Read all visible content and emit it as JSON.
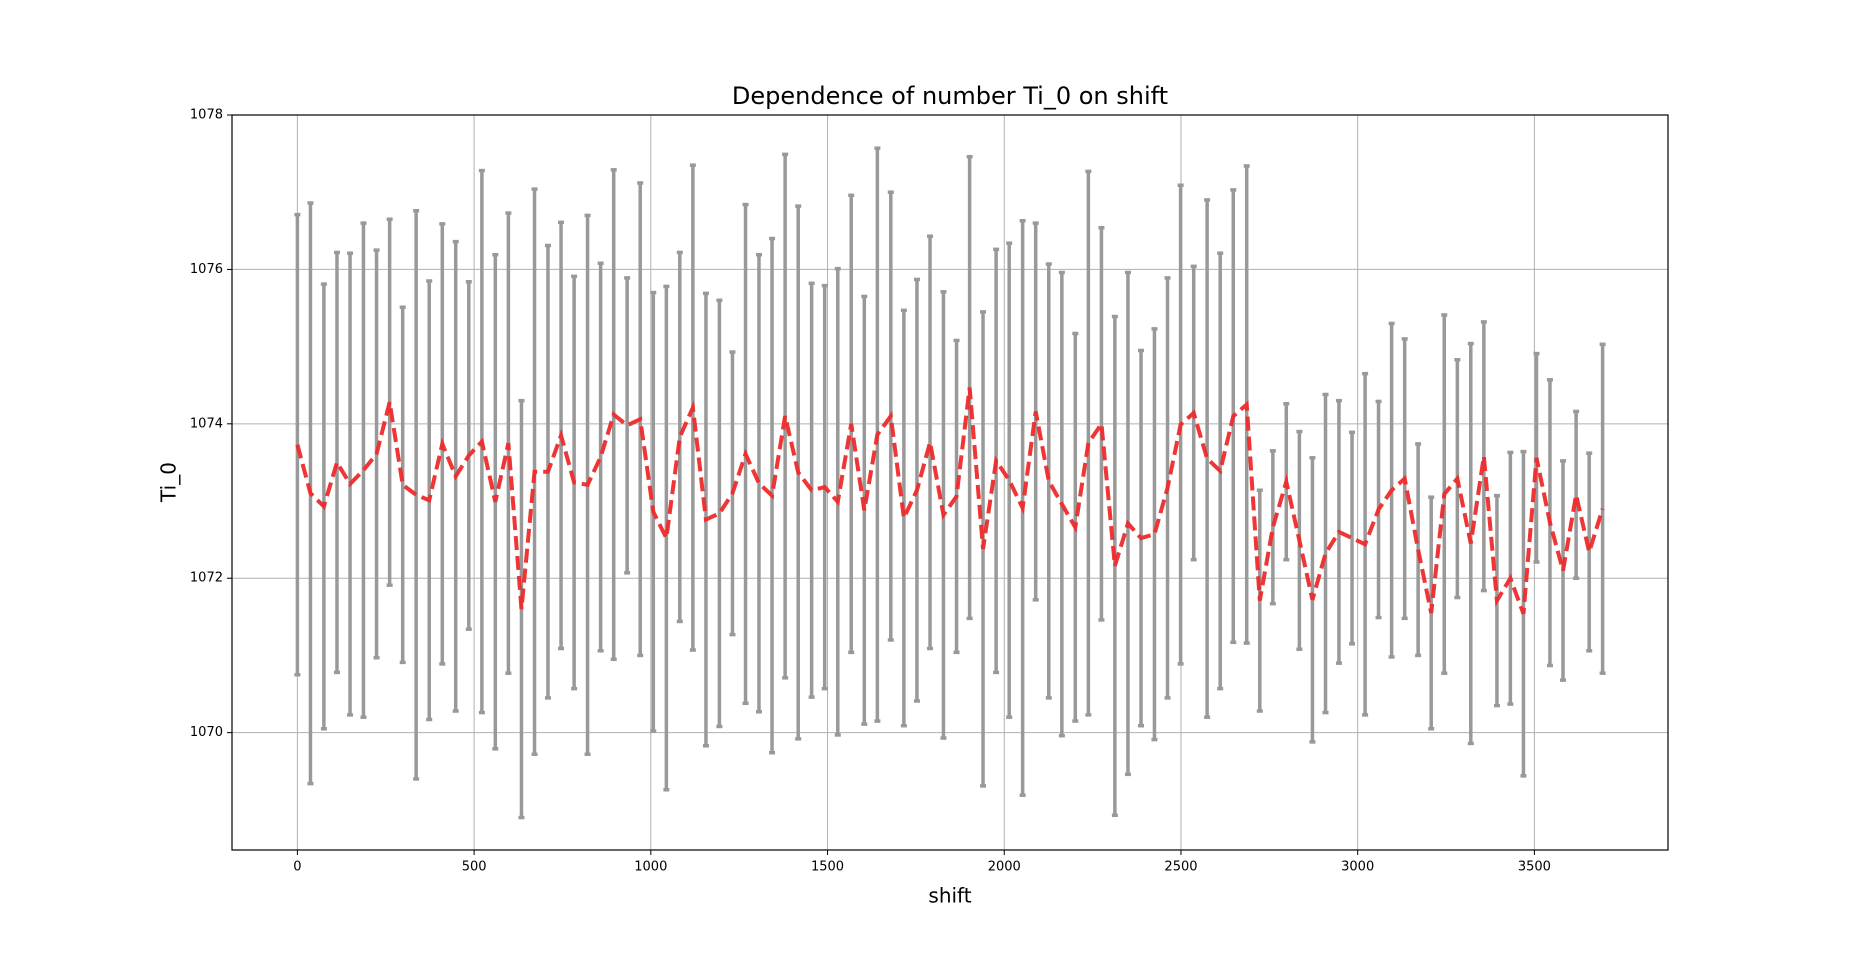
{
  "chart_data": {
    "type": "errorbar-line",
    "title": "Dependence of number Ti_0 on shift",
    "x_label": "shift",
    "y_label": "Ti_0",
    "x": [
      0,
      37,
      75,
      112,
      149,
      187,
      224,
      261,
      298,
      336,
      373,
      410,
      448,
      485,
      522,
      560,
      597,
      634,
      671,
      709,
      746,
      783,
      821,
      858,
      895,
      933,
      970,
      1007,
      1044,
      1082,
      1119,
      1156,
      1194,
      1231,
      1268,
      1306,
      1343,
      1380,
      1417,
      1455,
      1492,
      1529,
      1567,
      1604,
      1641,
      1679,
      1716,
      1753,
      1790,
      1828,
      1865,
      1902,
      1940,
      1977,
      2014,
      2052,
      2089,
      2126,
      2163,
      2201,
      2238,
      2275,
      2313,
      2350,
      2387,
      2425,
      2462,
      2499,
      2536,
      2574,
      2611,
      2648,
      2686,
      2723,
      2760,
      2798,
      2835,
      2872,
      2909,
      2947,
      2984,
      3021,
      3059,
      3096,
      3133,
      3171,
      3208,
      3245,
      3282,
      3320,
      3357,
      3394,
      3432,
      3469,
      3506,
      3544,
      3581,
      3618,
      3655,
      3693
    ],
    "series": [
      {
        "color": "#ee2a2a",
        "error_color": "#999999",
        "values": [
          1073.73,
          1073.1,
          1072.93,
          1073.5,
          1073.22,
          1073.4,
          1073.61,
          1074.28,
          1073.21,
          1073.08,
          1073.01,
          1073.74,
          1073.32,
          1073.59,
          1073.77,
          1072.99,
          1073.75,
          1071.6,
          1073.38,
          1073.38,
          1073.85,
          1073.24,
          1073.21,
          1073.57,
          1074.12,
          1073.98,
          1074.06,
          1072.86,
          1072.52,
          1073.83,
          1074.21,
          1072.76,
          1072.84,
          1073.1,
          1073.61,
          1073.23,
          1073.07,
          1074.1,
          1073.37,
          1073.14,
          1073.18,
          1072.99,
          1074.0,
          1072.88,
          1073.86,
          1074.1,
          1072.78,
          1073.14,
          1073.76,
          1072.82,
          1073.06,
          1074.47,
          1072.38,
          1073.52,
          1073.27,
          1072.91,
          1074.16,
          1073.26,
          1072.96,
          1072.66,
          1073.75,
          1074.0,
          1072.16,
          1072.71,
          1072.52,
          1072.57,
          1073.17,
          1073.99,
          1074.14,
          1073.55,
          1073.39,
          1074.1,
          1074.25,
          1071.71,
          1072.66,
          1073.25,
          1072.49,
          1071.72,
          1072.32,
          1072.6,
          1072.52,
          1072.44,
          1072.89,
          1073.14,
          1073.29,
          1072.37,
          1071.55,
          1073.09,
          1073.29,
          1072.45,
          1073.58,
          1071.71,
          1072.0,
          1071.54,
          1073.56,
          1072.72,
          1072.1,
          1073.08,
          1072.34,
          1072.9
        ],
        "errors": [
          2.98,
          3.76,
          2.88,
          2.72,
          2.99,
          3.2,
          2.64,
          2.37,
          2.3,
          3.68,
          2.84,
          2.85,
          3.04,
          2.25,
          3.51,
          3.2,
          2.98,
          2.7,
          3.66,
          2.93,
          2.76,
          2.67,
          3.49,
          2.51,
          3.17,
          1.91,
          3.06,
          2.84,
          3.26,
          2.39,
          3.14,
          2.93,
          2.76,
          1.83,
          3.23,
          2.96,
          3.33,
          3.39,
          3.45,
          2.68,
          2.61,
          3.02,
          2.96,
          2.77,
          3.71,
          2.9,
          2.69,
          2.73,
          2.67,
          2.89,
          2.02,
          2.99,
          3.07,
          2.74,
          3.07,
          3.72,
          2.44,
          2.81,
          3.0,
          2.51,
          3.52,
          2.54,
          3.23,
          3.25,
          2.43,
          2.66,
          2.72,
          3.1,
          1.9,
          3.35,
          2.82,
          2.93,
          3.09,
          1.43,
          0.99,
          1.01,
          1.41,
          1.84,
          2.06,
          1.7,
          1.37,
          2.21,
          1.4,
          2.16,
          1.81,
          1.37,
          1.5,
          2.32,
          1.54,
          2.59,
          1.74,
          1.36,
          1.63,
          2.1,
          1.35,
          1.85,
          1.42,
          1.08,
          1.28,
          2.13
        ]
      }
    ],
    "xlim": [
      -185,
      3878
    ],
    "xticks": [
      0,
      500,
      1000,
      1500,
      2000,
      2500,
      3000,
      3500
    ],
    "ylim": [
      1068.48,
      1078.0
    ],
    "yticks": [
      1070,
      1072,
      1074,
      1076,
      1078
    ],
    "grid": true
  }
}
